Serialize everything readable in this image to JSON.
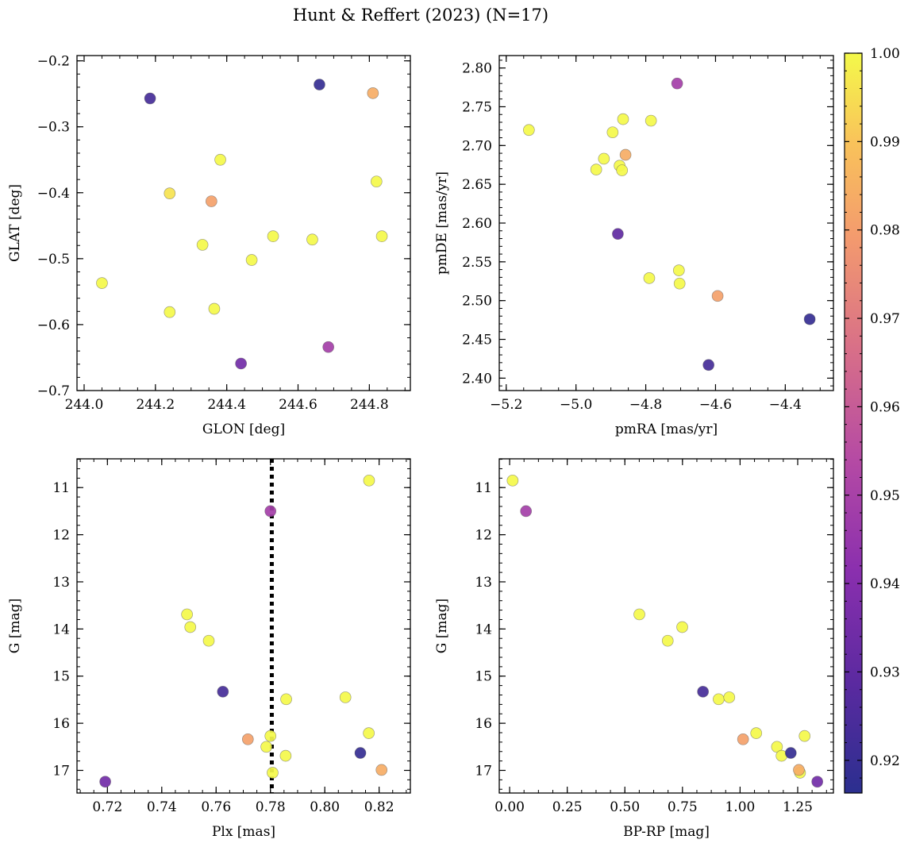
{
  "figure": {
    "title": "Hunt & Reffert (2023) (N=17)"
  },
  "colorbar": {
    "range": [
      0.9163,
      1.0
    ],
    "ticks": [
      0.92,
      0.93,
      0.94,
      0.95,
      0.96,
      0.97,
      0.98,
      0.99,
      1.0
    ],
    "tick_labels": [
      "0.92",
      "0.93",
      "0.94",
      "0.95",
      "0.96",
      "0.97",
      "0.98",
      "0.99",
      "1.00"
    ],
    "colormap": "plasma"
  },
  "chart_data": [
    {
      "type": "scatter",
      "id": "lonlat",
      "xlabel": "GLON [deg]",
      "ylabel": "GLAT [deg]",
      "xlim": [
        243.98,
        244.915
      ],
      "ylim": [
        -0.7,
        -0.192
      ],
      "invert_y": false,
      "xticks": [
        244.0,
        244.2,
        244.4,
        244.6,
        244.8
      ],
      "xtick_labels": [
        "244.0",
        "244.2",
        "244.4",
        "244.6",
        "244.8"
      ],
      "yticks": [
        -0.7,
        -0.6,
        -0.5,
        -0.4,
        -0.3,
        -0.2
      ],
      "ytick_labels": [
        "−0.7",
        "−0.6",
        "−0.5",
        "−0.4",
        "−0.3",
        "−0.2"
      ],
      "x": [
        244.185,
        244.66,
        244.81,
        244.382,
        244.24,
        244.357,
        244.82,
        244.53,
        244.64,
        244.835,
        244.332,
        244.47,
        244.05,
        244.24,
        244.365,
        244.685,
        244.44
      ],
      "y": [
        -0.257,
        -0.236,
        -0.249,
        -0.35,
        -0.401,
        -0.413,
        -0.383,
        -0.466,
        -0.471,
        -0.466,
        -0.479,
        -0.502,
        -0.537,
        -0.581,
        -0.576,
        -0.634,
        -0.659
      ],
      "c": [
        0.923,
        0.919,
        0.984,
        1.0,
        0.996,
        0.981,
        1.0,
        1.0,
        1.0,
        1.0,
        1.0,
        1.0,
        1.0,
        1.0,
        1.0,
        0.949,
        0.935
      ]
    },
    {
      "type": "scatter",
      "id": "pm",
      "xlabel": "pmRA [mas/yr]",
      "ylabel": "pmDE [mas/yr]",
      "xlim": [
        -5.22,
        -4.262
      ],
      "ylim": [
        2.384,
        2.816
      ],
      "invert_y": false,
      "xticks": [
        -5.2,
        -5.0,
        -4.8,
        -4.6,
        -4.4
      ],
      "xtick_labels": [
        "−5.2",
        "−5.0",
        "−4.8",
        "−4.6",
        "−4.4"
      ],
      "yticks": [
        2.4,
        2.45,
        2.5,
        2.55,
        2.6,
        2.65,
        2.7,
        2.75,
        2.8
      ],
      "ytick_labels": [
        "2.40",
        "2.45",
        "2.50",
        "2.55",
        "2.60",
        "2.65",
        "2.70",
        "2.75",
        "2.80"
      ],
      "x": [
        -4.71,
        -5.135,
        -4.865,
        -4.785,
        -4.895,
        -4.92,
        -4.942,
        -4.875,
        -4.868,
        -4.858,
        -4.88,
        -4.705,
        -4.79,
        -4.703,
        -4.594,
        -4.33,
        -4.62
      ],
      "y": [
        2.78,
        2.72,
        2.734,
        2.732,
        2.717,
        2.683,
        2.669,
        2.674,
        2.668,
        2.688,
        2.586,
        2.539,
        2.529,
        2.522,
        2.506,
        2.476,
        2.417
      ],
      "c": [
        0.949,
        1.0,
        1.0,
        1.0,
        1.0,
        1.0,
        1.0,
        1.0,
        1.0,
        0.984,
        0.93,
        1.0,
        1.0,
        1.0,
        0.981,
        0.919,
        0.923
      ]
    },
    {
      "type": "scatter",
      "id": "plx",
      "xlabel": "Plx [mas]",
      "ylabel": "G [mag]",
      "xlim": [
        0.7088,
        0.8315
      ],
      "ylim": [
        17.48,
        10.39
      ],
      "invert_y": true,
      "xticks": [
        0.72,
        0.74,
        0.76,
        0.78,
        0.8,
        0.82
      ],
      "xtick_labels": [
        "0.72",
        "0.74",
        "0.76",
        "0.78",
        "0.80",
        "0.82"
      ],
      "yticks": [
        11,
        12,
        13,
        14,
        15,
        16,
        17
      ],
      "ytick_labels": [
        "11",
        "12",
        "13",
        "14",
        "15",
        "16",
        "17"
      ],
      "vline": 0.7805,
      "x": [
        0.8163,
        0.78,
        0.7493,
        0.7505,
        0.7573,
        0.7625,
        0.7858,
        0.8076,
        0.8162,
        0.7717,
        0.7785,
        0.78,
        0.7856,
        0.8131,
        0.7808,
        0.8209,
        0.7192
      ],
      "y": [
        10.85,
        11.5,
        13.69,
        13.96,
        14.25,
        15.33,
        15.49,
        15.45,
        16.21,
        16.34,
        16.5,
        16.27,
        16.69,
        16.63,
        17.05,
        16.99,
        17.24
      ],
      "c": [
        1.0,
        0.949,
        1.0,
        1.0,
        1.0,
        0.923,
        1.0,
        1.0,
        1.0,
        0.981,
        1.0,
        1.0,
        1.0,
        0.919,
        1.0,
        0.984,
        0.935
      ]
    },
    {
      "type": "scatter",
      "id": "cmd",
      "xlabel": "BP-RP [mag]",
      "ylabel": "G [mag]",
      "xlim": [
        -0.045,
        1.405
      ],
      "ylim": [
        17.48,
        10.39
      ],
      "invert_y": true,
      "xticks": [
        0.0,
        0.25,
        0.5,
        0.75,
        1.0,
        1.25
      ],
      "xtick_labels": [
        "0.00",
        "0.25",
        "0.50",
        "0.75",
        "1.00",
        "1.25"
      ],
      "yticks": [
        11,
        12,
        13,
        14,
        15,
        16,
        17
      ],
      "ytick_labels": [
        "11",
        "12",
        "13",
        "14",
        "15",
        "16",
        "17"
      ],
      "x": [
        0.013,
        0.071,
        0.563,
        0.749,
        0.686,
        0.839,
        0.907,
        0.953,
        1.07,
        1.013,
        1.16,
        1.28,
        1.18,
        1.22,
        1.26,
        1.255,
        1.335
      ],
      "y": [
        10.85,
        11.5,
        13.69,
        13.96,
        14.25,
        15.33,
        15.49,
        15.45,
        16.21,
        16.34,
        16.5,
        16.27,
        16.69,
        16.63,
        17.05,
        16.99,
        17.24
      ],
      "c": [
        1.0,
        0.949,
        1.0,
        1.0,
        1.0,
        0.923,
        1.0,
        1.0,
        1.0,
        0.981,
        1.0,
        1.0,
        1.0,
        0.919,
        1.0,
        0.984,
        0.935
      ]
    }
  ]
}
